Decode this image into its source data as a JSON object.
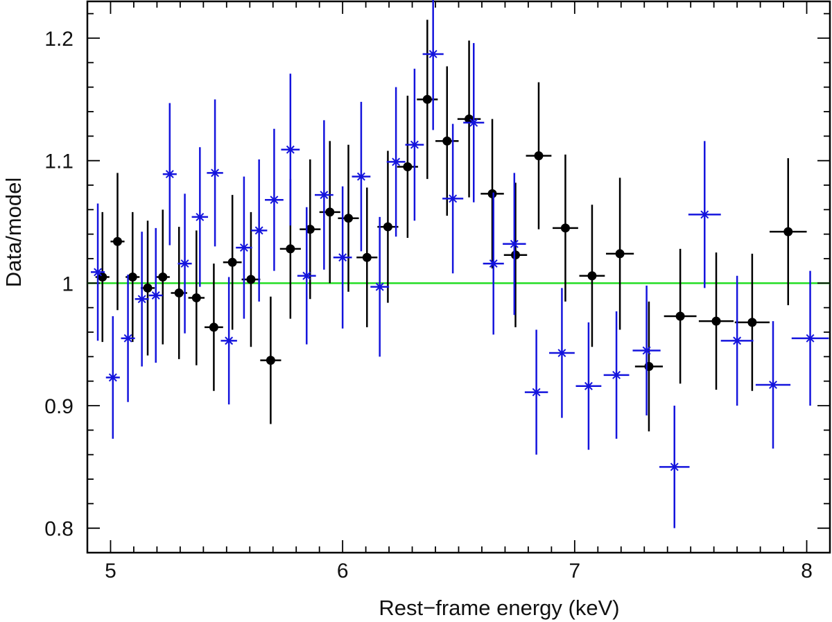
{
  "chart_data": {
    "type": "scatter",
    "xlabel": "Rest−frame energy (keV)",
    "ylabel": "Data/model",
    "xlim": [
      4.9,
      8.1
    ],
    "ylim": [
      0.78,
      1.23
    ],
    "xticks": [
      5,
      6,
      7,
      8
    ],
    "xtick_labels": [
      "5",
      "6",
      "7",
      "8"
    ],
    "yticks": [
      0.8,
      0.9,
      1.0,
      1.1,
      1.2
    ],
    "ytick_labels": [
      "0.8",
      "0.9",
      "1",
      "1.1",
      "1.2"
    ],
    "reference_line": {
      "y": 1.0,
      "color": "#22dd22"
    },
    "grid": false,
    "series": [
      {
        "marker": "filled-circle",
        "color": "#000000",
        "points": [
          {
            "x": 4.965,
            "xerr": 0.03,
            "y": 1.005,
            "yerr": 0.053
          },
          {
            "x": 5.03,
            "xerr": 0.03,
            "y": 1.034,
            "yerr": 0.056
          },
          {
            "x": 5.095,
            "xerr": 0.03,
            "y": 1.005,
            "yerr": 0.053
          },
          {
            "x": 5.16,
            "xerr": 0.03,
            "y": 0.996,
            "yerr": 0.055
          },
          {
            "x": 5.225,
            "xerr": 0.03,
            "y": 1.005,
            "yerr": 0.055
          },
          {
            "x": 5.295,
            "xerr": 0.035,
            "y": 0.992,
            "yerr": 0.054
          },
          {
            "x": 5.37,
            "xerr": 0.035,
            "y": 0.988,
            "yerr": 0.055
          },
          {
            "x": 5.445,
            "xerr": 0.04,
            "y": 0.964,
            "yerr": 0.052
          },
          {
            "x": 5.525,
            "xerr": 0.04,
            "y": 1.017,
            "yerr": 0.055
          },
          {
            "x": 5.605,
            "xerr": 0.04,
            "y": 1.003,
            "yerr": 0.055
          },
          {
            "x": 5.69,
            "xerr": 0.045,
            "y": 0.937,
            "yerr": 0.052
          },
          {
            "x": 5.775,
            "xerr": 0.045,
            "y": 1.028,
            "yerr": 0.057
          },
          {
            "x": 5.86,
            "xerr": 0.045,
            "y": 1.044,
            "yerr": 0.057
          },
          {
            "x": 5.945,
            "xerr": 0.045,
            "y": 1.058,
            "yerr": 0.058
          },
          {
            "x": 6.025,
            "xerr": 0.045,
            "y": 1.053,
            "yerr": 0.06
          },
          {
            "x": 6.105,
            "xerr": 0.045,
            "y": 1.021,
            "yerr": 0.057
          },
          {
            "x": 6.195,
            "xerr": 0.045,
            "y": 1.046,
            "yerr": 0.062
          },
          {
            "x": 6.28,
            "xerr": 0.045,
            "y": 1.095,
            "yerr": 0.058
          },
          {
            "x": 6.365,
            "xerr": 0.045,
            "y": 1.15,
            "yerr": 0.065
          },
          {
            "x": 6.45,
            "xerr": 0.05,
            "y": 1.116,
            "yerr": 0.061
          },
          {
            "x": 6.545,
            "xerr": 0.05,
            "y": 1.134,
            "yerr": 0.064
          },
          {
            "x": 6.645,
            "xerr": 0.05,
            "y": 1.073,
            "yerr": 0.061
          },
          {
            "x": 6.745,
            "xerr": 0.05,
            "y": 1.023,
            "yerr": 0.059
          },
          {
            "x": 6.845,
            "xerr": 0.055,
            "y": 1.104,
            "yerr": 0.06
          },
          {
            "x": 6.96,
            "xerr": 0.055,
            "y": 1.045,
            "yerr": 0.06
          },
          {
            "x": 7.075,
            "xerr": 0.055,
            "y": 1.006,
            "yerr": 0.058
          },
          {
            "x": 7.195,
            "xerr": 0.06,
            "y": 1.024,
            "yerr": 0.062
          },
          {
            "x": 7.32,
            "xerr": 0.06,
            "y": 0.932,
            "yerr": 0.053
          },
          {
            "x": 7.455,
            "xerr": 0.07,
            "y": 0.973,
            "yerr": 0.055
          },
          {
            "x": 7.61,
            "xerr": 0.075,
            "y": 0.969,
            "yerr": 0.056
          },
          {
            "x": 7.765,
            "xerr": 0.075,
            "y": 0.968,
            "yerr": 0.056
          },
          {
            "x": 7.92,
            "xerr": 0.08,
            "y": 1.042,
            "yerr": 0.06
          }
        ]
      },
      {
        "marker": "asterisk",
        "color": "#1414dd",
        "points": [
          {
            "x": 4.945,
            "xerr": 0.03,
            "y": 1.009,
            "yerr": 0.056
          },
          {
            "x": 5.01,
            "xerr": 0.03,
            "y": 0.923,
            "yerr": 0.05
          },
          {
            "x": 5.075,
            "xerr": 0.03,
            "y": 0.955,
            "yerr": 0.052
          },
          {
            "x": 5.135,
            "xerr": 0.03,
            "y": 0.987,
            "yerr": 0.055
          },
          {
            "x": 5.195,
            "xerr": 0.03,
            "y": 0.99,
            "yerr": 0.055
          },
          {
            "x": 5.255,
            "xerr": 0.03,
            "y": 1.089,
            "yerr": 0.058
          },
          {
            "x": 5.32,
            "xerr": 0.03,
            "y": 1.016,
            "yerr": 0.057
          },
          {
            "x": 5.385,
            "xerr": 0.035,
            "y": 1.054,
            "yerr": 0.057
          },
          {
            "x": 5.45,
            "xerr": 0.035,
            "y": 1.09,
            "yerr": 0.06
          },
          {
            "x": 5.51,
            "xerr": 0.035,
            "y": 0.953,
            "yerr": 0.052
          },
          {
            "x": 5.575,
            "xerr": 0.035,
            "y": 1.029,
            "yerr": 0.058
          },
          {
            "x": 5.64,
            "xerr": 0.035,
            "y": 1.043,
            "yerr": 0.058
          },
          {
            "x": 5.705,
            "xerr": 0.04,
            "y": 1.068,
            "yerr": 0.058
          },
          {
            "x": 5.775,
            "xerr": 0.04,
            "y": 1.109,
            "yerr": 0.062
          },
          {
            "x": 5.845,
            "xerr": 0.04,
            "y": 1.006,
            "yerr": 0.056
          },
          {
            "x": 5.92,
            "xerr": 0.04,
            "y": 1.072,
            "yerr": 0.061
          },
          {
            "x": 6.0,
            "xerr": 0.04,
            "y": 1.021,
            "yerr": 0.058
          },
          {
            "x": 6.08,
            "xerr": 0.04,
            "y": 1.087,
            "yerr": 0.061
          },
          {
            "x": 6.16,
            "xerr": 0.04,
            "y": 0.997,
            "yerr": 0.057
          },
          {
            "x": 6.23,
            "xerr": 0.04,
            "y": 1.099,
            "yerr": 0.061
          },
          {
            "x": 6.31,
            "xerr": 0.04,
            "y": 1.113,
            "yerr": 0.062
          },
          {
            "x": 6.39,
            "xerr": 0.045,
            "y": 1.187,
            "yerr": 0.062
          },
          {
            "x": 6.475,
            "xerr": 0.045,
            "y": 1.069,
            "yerr": 0.061
          },
          {
            "x": 6.565,
            "xerr": 0.045,
            "y": 1.131,
            "yerr": 0.065
          },
          {
            "x": 6.65,
            "xerr": 0.045,
            "y": 1.016,
            "yerr": 0.058
          },
          {
            "x": 6.74,
            "xerr": 0.05,
            "y": 1.032,
            "yerr": 0.058
          },
          {
            "x": 6.835,
            "xerr": 0.05,
            "y": 0.911,
            "yerr": 0.051
          },
          {
            "x": 6.945,
            "xerr": 0.055,
            "y": 0.943,
            "yerr": 0.053
          },
          {
            "x": 7.06,
            "xerr": 0.055,
            "y": 0.916,
            "yerr": 0.052
          },
          {
            "x": 7.18,
            "xerr": 0.055,
            "y": 0.925,
            "yerr": 0.052
          },
          {
            "x": 7.31,
            "xerr": 0.06,
            "y": 0.945,
            "yerr": 0.053
          },
          {
            "x": 7.43,
            "xerr": 0.065,
            "y": 0.85,
            "yerr": 0.05
          },
          {
            "x": 7.56,
            "xerr": 0.07,
            "y": 1.056,
            "yerr": 0.06
          },
          {
            "x": 7.7,
            "xerr": 0.07,
            "y": 0.953,
            "yerr": 0.053
          },
          {
            "x": 7.855,
            "xerr": 0.075,
            "y": 0.917,
            "yerr": 0.052
          },
          {
            "x": 8.015,
            "xerr": 0.08,
            "y": 0.955,
            "yerr": 0.055
          }
        ]
      }
    ]
  }
}
